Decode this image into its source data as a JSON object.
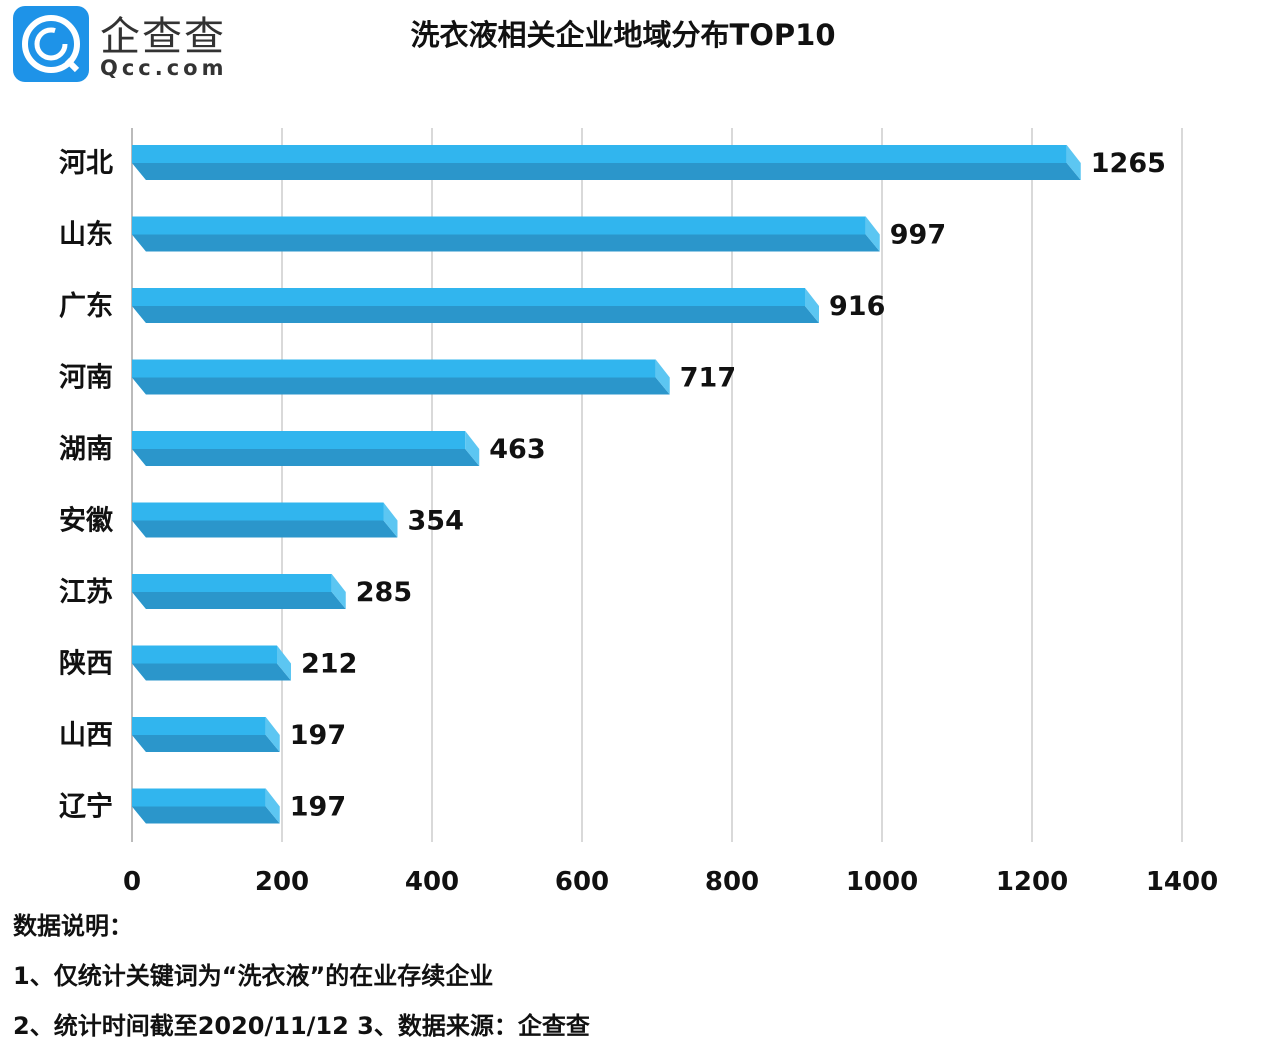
{
  "logo": {
    "cn": "企查查",
    "en": "Qcc.com"
  },
  "chart_data": {
    "type": "bar",
    "orientation": "horizontal",
    "title": "洗衣液相关企业地域分布TOP10",
    "categories": [
      "河北",
      "山东",
      "广东",
      "河南",
      "湖南",
      "安徽",
      "江苏",
      "陕西",
      "山西",
      "辽宁"
    ],
    "values": [
      1265,
      997,
      916,
      717,
      463,
      354,
      285,
      212,
      197,
      197
    ],
    "xlim": [
      0,
      1400
    ],
    "xticks": [
      0,
      200,
      400,
      600,
      800,
      1000,
      1200,
      1400
    ],
    "grid": true,
    "colors": {
      "top": "#31b5ee",
      "bottom": "#2b96cb",
      "end": "#5cc6f2"
    }
  },
  "notes": [
    "数据说明：",
    "1、仅统计关键词为“洗衣液”的在业存续企业",
    "2、统计时间截至2020/11/12  3、数据来源：企查查"
  ]
}
